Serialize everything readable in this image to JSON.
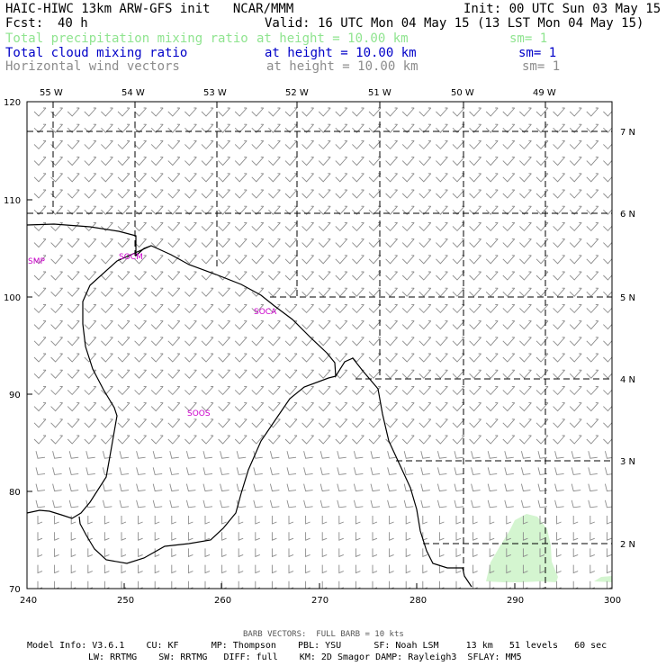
{
  "header": {
    "line1_left": "HAIC-HIWC 13km ARW-GFS init   NCAR/MMM",
    "line1_right": "Init: 00 UTC Sun 03 May 15",
    "fcst_label": "Fcst:",
    "fcst_value": "40 h",
    "valid": "Valid: 16 UTC Mon 04 May 15 (13 LST Mon 04 May 15)"
  },
  "fields": [
    {
      "name": "Total precipitation mixing ratio",
      "height": "at height = 10.00 km",
      "sm": "sm= 1",
      "color": "#8fe48f"
    },
    {
      "name": "Total cloud mixing ratio",
      "height": "at height = 10.00 km",
      "sm": "sm= 1",
      "color": "#0000c8"
    },
    {
      "name": "Horizontal wind vectors",
      "height": "at height = 10.00 km",
      "sm": "sm= 1",
      "color": "#8c8c8c"
    }
  ],
  "map": {
    "top_labels": [
      "55 W",
      "54 W",
      "53 W",
      "52 W",
      "51 W",
      "50 W",
      "49 W"
    ],
    "right_labels": [
      "7 N",
      "6 N",
      "5 N",
      "4 N",
      "3 N",
      "2 N"
    ],
    "left_ticks": [
      "120",
      "110",
      "100",
      "90",
      "80",
      "70"
    ],
    "bottom_ticks": [
      "240",
      "250",
      "260",
      "270",
      "280",
      "290",
      "300"
    ],
    "cities": [
      "SMP",
      "SOCM",
      "SOCA",
      "SOOS"
    ],
    "coast_color": "#000000",
    "precip_color": "#d4f5d0",
    "barb_color": "#8c8c8c"
  },
  "footer": {
    "barb_note": "BARB VECTORS:  FULL BARB = 10 kts",
    "line1": "Model Info: V3.6.1    CU: KF      MP: Thompson    PBL: YSU      SF: Noah LSM     13 km   51 levels   60 sec",
    "line2": "LW: RRTMG    SW: RRTMG   DIFF: full    KM: 2D Smagor DAMP: Rayleigh3  SFLAY: MM5"
  }
}
